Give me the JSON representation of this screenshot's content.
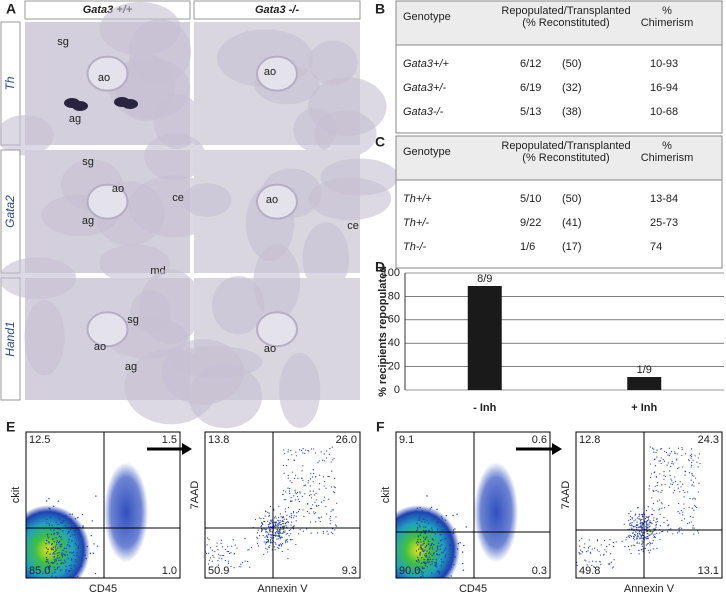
{
  "panel_a": {
    "label": "A",
    "columns": [
      "Gata3 +/+",
      "Gata3 -/-"
    ],
    "rows": [
      {
        "gene": "Th",
        "left": [
          "sg",
          "ao",
          "ag"
        ],
        "right": [
          "ao"
        ]
      },
      {
        "gene": "Gata2",
        "left": [
          "sg",
          "ao",
          "ag",
          "ce",
          "md"
        ],
        "right": [
          "ao",
          "ce"
        ]
      },
      {
        "gene": "Hand1",
        "left": [
          "sg",
          "ao",
          "ag"
        ],
        "right": [
          "ao"
        ]
      }
    ]
  },
  "panel_b": {
    "label": "B",
    "header": [
      [
        "Genotype"
      ],
      [
        "Repopulated/Transplanted",
        "(% Reconstituted)"
      ],
      [
        "%",
        "Chimerism"
      ]
    ],
    "rows": [
      [
        "Gata3+/+",
        "6/12",
        "(50)",
        "10-93"
      ],
      [
        "Gata3+/-",
        "6/19",
        "(32)",
        "16-94"
      ],
      [
        "Gata3-/-",
        "5/13",
        "(38)",
        "10-68"
      ]
    ]
  },
  "panel_c": {
    "label": "C",
    "header": [
      [
        "Genotype"
      ],
      [
        "Repopulated/Transplanted",
        "(% Reconstituted)"
      ],
      [
        "%",
        "Chimerism"
      ]
    ],
    "rows": [
      [
        "Th+/+",
        "5/10",
        "(50)",
        "13-84"
      ],
      [
        "Th+/-",
        "9/22",
        "(41)",
        "25-73"
      ],
      [
        "Th-/-",
        "1/6",
        "(17)",
        "74"
      ]
    ]
  },
  "chart_data": {
    "type": "bar",
    "panel_label": "D",
    "ylabel": "% recipients repopulated",
    "categories": [
      "- Inh",
      "+ Inh"
    ],
    "values": [
      88.9,
      11.1
    ],
    "value_labels": [
      "8/9",
      "1/9"
    ],
    "color": "#1a1a1a",
    "ylim": [
      0,
      100
    ],
    "yticks": [
      0,
      20,
      40,
      60,
      80,
      100
    ],
    "grid": true
  },
  "panel_e": {
    "label": "E",
    "plots": [
      {
        "xlabel": "CD45",
        "ylabel": "ckit",
        "quadrants": [
          "12.5",
          "1.5",
          "85.0",
          "1.0"
        ]
      },
      {
        "xlabel": "Annexin V",
        "ylabel": "7AAD",
        "quadrants": [
          "13.8",
          "26.0",
          "50.9",
          "9.3"
        ]
      }
    ]
  },
  "panel_f": {
    "label": "F",
    "plots": [
      {
        "xlabel": "CD45",
        "ylabel": "ckit",
        "quadrants": [
          "9.1",
          "0.6",
          "90.0",
          "0.3"
        ]
      },
      {
        "xlabel": "Annexin V",
        "ylabel": "7AAD",
        "quadrants": [
          "12.8",
          "24.3",
          "49.8",
          "13.1"
        ]
      }
    ]
  }
}
